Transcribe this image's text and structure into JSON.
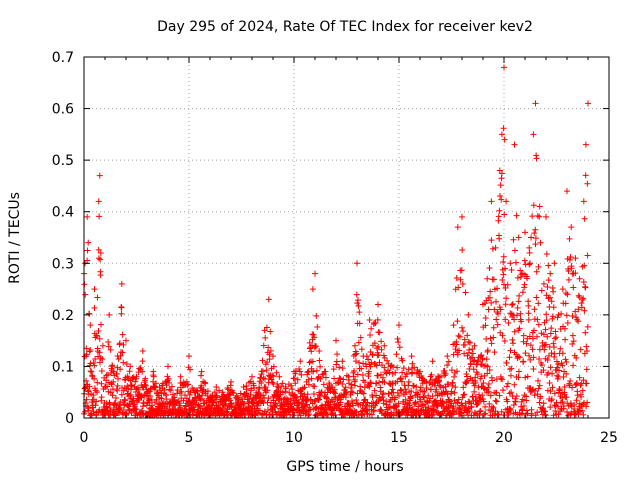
{
  "chart_data": {
    "type": "scatter",
    "title": "Day 295 of 2024, Rate Of TEC Index for receiver kev2",
    "xlabel": "GPS time / hours",
    "ylabel": "ROTI / TECUs",
    "xlim": [
      0,
      25
    ],
    "ylim": [
      0,
      0.7
    ],
    "x_ticks": [
      0,
      5,
      10,
      15,
      20,
      25
    ],
    "y_ticks": [
      0,
      0.1,
      0.2,
      0.3,
      0.4,
      0.5,
      0.6,
      0.7
    ],
    "x_tick_labels": [
      "0",
      "5",
      "10",
      "15",
      "20",
      "25"
    ],
    "y_tick_labels": [
      "0",
      "0.1",
      "0.2",
      "0.3",
      "0.4",
      "0.5",
      "0.6",
      "0.7"
    ],
    "grid": true,
    "marker": "+",
    "color": "#ff0000",
    "series": [
      {
        "name": "ROTI",
        "x": [
          0.0,
          0.05,
          0.1,
          0.15,
          0.2,
          0.3,
          0.4,
          0.5,
          0.6,
          0.7,
          0.75,
          0.8,
          0.9,
          1.0,
          1.2,
          1.4,
          1.6,
          1.8,
          2.0,
          2.2,
          2.5,
          2.8,
          3.0,
          3.3,
          3.6,
          4.0,
          4.3,
          4.6,
          4.9,
          5.0,
          5.3,
          5.6,
          6.0,
          6.3,
          6.6,
          7.0,
          7.3,
          7.6,
          8.0,
          8.3,
          8.6,
          8.8,
          9.0,
          9.3,
          9.6,
          10.0,
          10.3,
          10.6,
          10.9,
          11.0,
          11.2,
          11.5,
          11.8,
          12.0,
          12.3,
          12.6,
          12.9,
          13.0,
          13.3,
          13.6,
          14.0,
          14.3,
          14.6,
          15.0,
          15.3,
          15.6,
          16.0,
          16.3,
          16.6,
          17.0,
          17.3,
          17.6,
          17.8,
          18.0,
          18.3,
          18.6,
          18.9,
          19.0,
          19.2,
          19.4,
          19.6,
          19.8,
          19.9,
          20.0,
          20.1,
          20.3,
          20.5,
          20.7,
          20.9,
          21.0,
          21.2,
          21.4,
          21.5,
          21.7,
          21.9,
          22.0,
          22.2,
          22.4,
          22.6,
          22.8,
          23.0,
          23.2,
          23.4,
          23.6,
          23.8,
          23.9,
          24.0
        ],
        "y": [
          0.28,
          0.3,
          0.12,
          0.39,
          0.34,
          0.18,
          0.08,
          0.25,
          0.16,
          0.42,
          0.47,
          0.32,
          0.14,
          0.06,
          0.2,
          0.09,
          0.12,
          0.26,
          0.15,
          0.1,
          0.08,
          0.13,
          0.05,
          0.09,
          0.06,
          0.1,
          0.04,
          0.08,
          0.07,
          0.12,
          0.05,
          0.09,
          0.04,
          0.06,
          0.05,
          0.07,
          0.04,
          0.06,
          0.08,
          0.05,
          0.17,
          0.23,
          0.12,
          0.08,
          0.06,
          0.09,
          0.11,
          0.07,
          0.25,
          0.28,
          0.13,
          0.09,
          0.06,
          0.15,
          0.11,
          0.08,
          0.14,
          0.3,
          0.12,
          0.19,
          0.22,
          0.14,
          0.1,
          0.18,
          0.08,
          0.12,
          0.09,
          0.07,
          0.11,
          0.08,
          0.12,
          0.18,
          0.37,
          0.39,
          0.2,
          0.14,
          0.12,
          0.22,
          0.27,
          0.42,
          0.33,
          0.48,
          0.55,
          0.68,
          0.42,
          0.3,
          0.53,
          0.35,
          0.28,
          0.36,
          0.33,
          0.55,
          0.61,
          0.41,
          0.26,
          0.39,
          0.28,
          0.3,
          0.2,
          0.25,
          0.44,
          0.37,
          0.31,
          0.27,
          0.42,
          0.53,
          0.61
        ]
      }
    ]
  }
}
